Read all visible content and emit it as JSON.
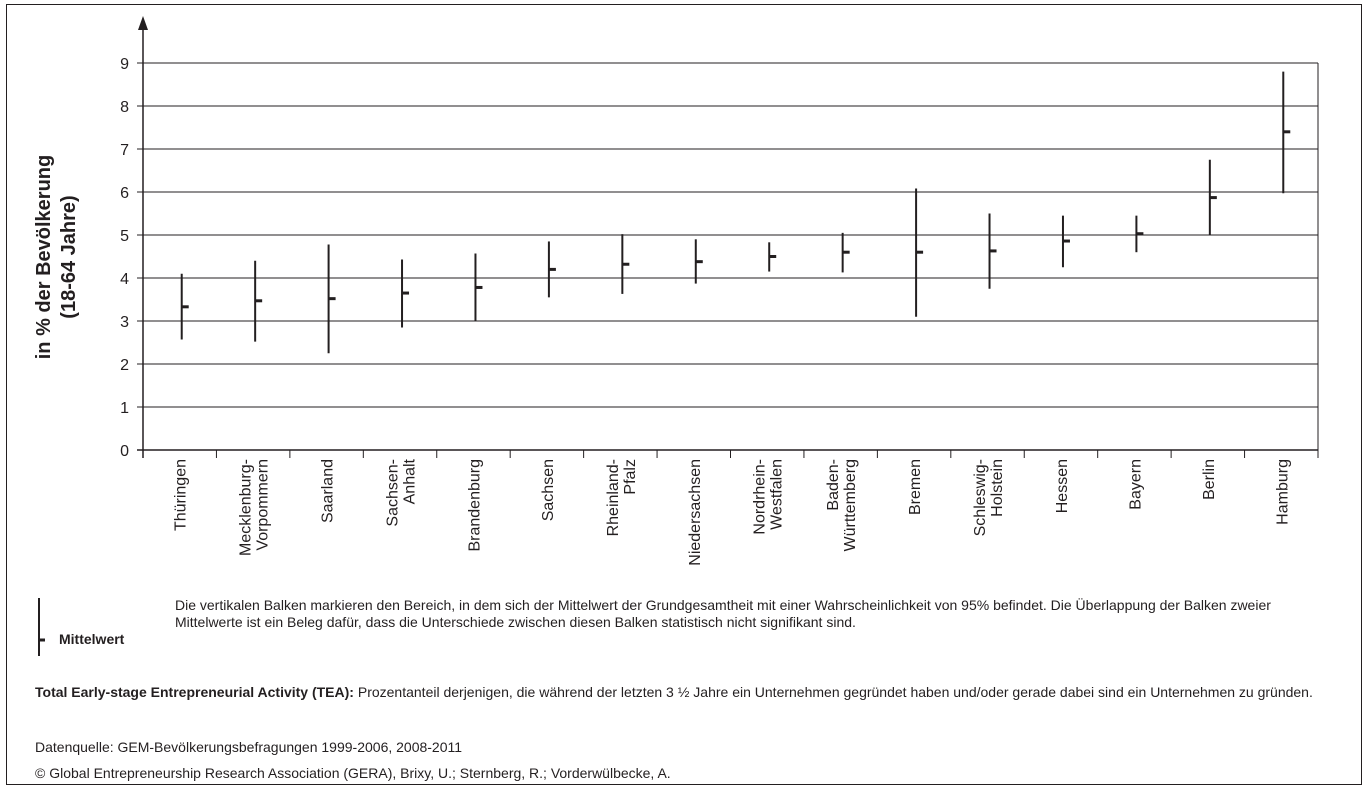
{
  "chart_data": {
    "type": "errorbar",
    "ylabel_line1": "in % der Bevölkerung",
    "ylabel_line2": "(18-64 Jahre)",
    "ylim": [
      0,
      9
    ],
    "yticks": [
      "0",
      "1",
      "2",
      "3",
      "4",
      "5",
      "6",
      "7",
      "8",
      "9"
    ],
    "grid": true,
    "categories": [
      [
        "Thüringen"
      ],
      [
        "Mecklenburg-",
        "Vorpommern"
      ],
      [
        "Saarland"
      ],
      [
        "Sachsen-",
        "Anhalt"
      ],
      [
        "Brandenburg"
      ],
      [
        "Sachsen"
      ],
      [
        "Rheinland-",
        "Pfalz"
      ],
      [
        "Niedersachsen"
      ],
      [
        "Nordrhein-",
        "Westfalen"
      ],
      [
        "Baden-",
        "Württemberg"
      ],
      [
        "Bremen"
      ],
      [
        "Schleswig-",
        "Holstein"
      ],
      [
        "Hessen"
      ],
      [
        "Bayern"
      ],
      [
        "Berlin"
      ],
      [
        "Hamburg"
      ]
    ],
    "mean": [
      3.33,
      3.47,
      3.52,
      3.65,
      3.78,
      4.2,
      4.32,
      4.38,
      4.5,
      4.6,
      4.6,
      4.63,
      4.86,
      5.03,
      5.87,
      7.4
    ],
    "lower": [
      2.57,
      2.52,
      2.25,
      2.85,
      3.0,
      3.55,
      3.63,
      3.87,
      4.15,
      4.13,
      3.1,
      3.75,
      4.25,
      4.6,
      5.0,
      5.97
    ],
    "upper": [
      4.1,
      4.4,
      4.78,
      4.43,
      4.57,
      4.85,
      5.02,
      4.9,
      4.83,
      5.05,
      6.08,
      5.5,
      5.45,
      5.45,
      6.75,
      8.8
    ]
  },
  "legend": {
    "mean_label": "Mittelwert",
    "description": "Die vertikalen Balken markieren den Bereich, in dem sich der Mittelwert der Grundgesamtheit mit einer Wahrscheinlichkeit von 95% befindet. Die Überlappung der Balken zweier Mittelwerte ist ein Beleg dafür, dass die Unterschiede zwischen diesen Balken statistisch nicht signifikant sind."
  },
  "notes": {
    "tea_term": "Total Early-stage Entrepreneurial Activity (TEA):",
    "tea_definition": " Prozentanteil derjenigen, die während der letzten 3 ½ Jahre ein Unternehmen gegründet haben und/oder gerade dabei sind ein Unternehmen zu gründen.",
    "source": "Datenquelle: GEM-Bevölkerungsbefragungen 1999-2006, 2008-2011",
    "copyright": "©  Global Entrepreneurship Research Association (GERA), Brixy, U.; Sternberg, R.; Vorderwülbecke, A."
  }
}
